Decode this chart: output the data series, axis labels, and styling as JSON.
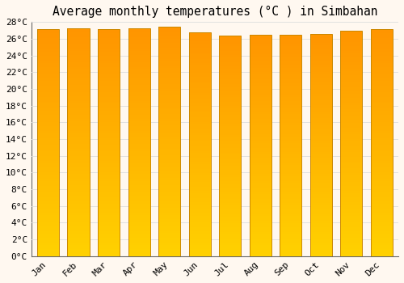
{
  "title": "Average monthly temperatures (°C ) in Simbahan",
  "months": [
    "Jan",
    "Feb",
    "Mar",
    "Apr",
    "May",
    "Jun",
    "Jul",
    "Aug",
    "Sep",
    "Oct",
    "Nov",
    "Dec"
  ],
  "values": [
    27.2,
    27.3,
    27.2,
    27.3,
    27.4,
    26.8,
    26.4,
    26.5,
    26.5,
    26.6,
    27.0,
    27.2
  ],
  "bar_edge_color": "#CC8800",
  "background_color": "#FFF8F0",
  "plot_bg_color": "#FFF8F0",
  "grid_color": "#DDDDDD",
  "bar_color_bottom": "#FFD000",
  "bar_color_top": "#FFA020",
  "ylim": [
    0,
    28
  ],
  "ytick_step": 2,
  "title_fontsize": 10.5,
  "tick_fontsize": 8,
  "font_family": "monospace"
}
